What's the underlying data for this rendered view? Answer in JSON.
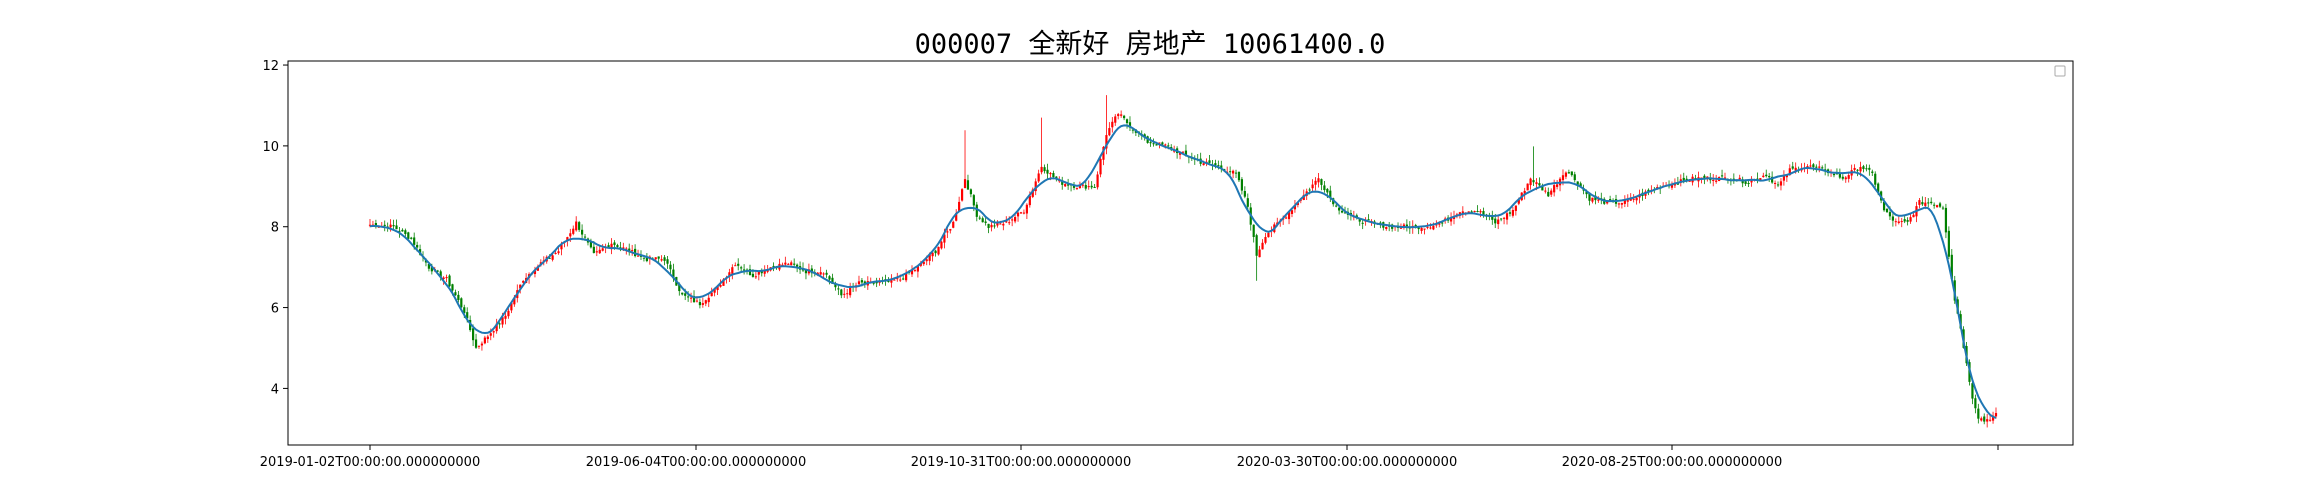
{
  "chart_data": {
    "type": "candlestick",
    "title": "000007 全新好 房地产 10061400.0",
    "xlabel": "",
    "ylabel": "",
    "ylim": [
      2.6,
      12.1
    ],
    "x_tick_labels": [
      "2019-01-02T00:00:00.000000000",
      "2019-06-04T00:00:00.000000000",
      "2019-10-31T00:00:00.000000000",
      "2020-03-30T00:00:00.000000000",
      "2020-08-25T00:00:00.000000000",
      ""
    ],
    "y_ticks": [
      4,
      6,
      8,
      10,
      12
    ],
    "grid": false,
    "legend": "top-right (empty)",
    "up_color": "#ff0000",
    "down_color": "#008000",
    "line_color": "#1f77b4",
    "price_keypoints": [
      [
        0,
        8.05
      ],
      [
        8,
        8.0
      ],
      [
        14,
        7.7
      ],
      [
        20,
        7.0
      ],
      [
        26,
        6.7
      ],
      [
        32,
        5.9
      ],
      [
        36,
        5.0
      ],
      [
        40,
        5.3
      ],
      [
        46,
        5.8
      ],
      [
        52,
        6.7
      ],
      [
        58,
        7.1
      ],
      [
        64,
        7.4
      ],
      [
        70,
        8.1
      ],
      [
        76,
        7.3
      ],
      [
        82,
        7.6
      ],
      [
        88,
        7.4
      ],
      [
        94,
        7.2
      ],
      [
        100,
        7.2
      ],
      [
        106,
        6.3
      ],
      [
        112,
        6.1
      ],
      [
        118,
        6.5
      ],
      [
        124,
        7.1
      ],
      [
        130,
        6.8
      ],
      [
        136,
        7.0
      ],
      [
        142,
        7.1
      ],
      [
        148,
        6.9
      ],
      [
        154,
        6.9
      ],
      [
        160,
        6.3
      ],
      [
        166,
        6.6
      ],
      [
        172,
        6.6
      ],
      [
        180,
        6.7
      ],
      [
        186,
        7.0
      ],
      [
        192,
        7.4
      ],
      [
        198,
        8.1
      ],
      [
        202,
        9.2
      ],
      [
        206,
        8.3
      ],
      [
        210,
        8.0
      ],
      [
        216,
        8.1
      ],
      [
        222,
        8.4
      ],
      [
        228,
        9.5
      ],
      [
        234,
        9.1
      ],
      [
        240,
        9.0
      ],
      [
        246,
        9.0
      ],
      [
        250,
        10.3
      ],
      [
        254,
        10.8
      ],
      [
        258,
        10.5
      ],
      [
        264,
        10.1
      ],
      [
        270,
        10.0
      ],
      [
        276,
        9.8
      ],
      [
        282,
        9.6
      ],
      [
        288,
        9.5
      ],
      [
        294,
        9.3
      ],
      [
        298,
        8.5
      ],
      [
        301,
        7.3
      ],
      [
        304,
        7.8
      ],
      [
        310,
        8.2
      ],
      [
        316,
        8.7
      ],
      [
        322,
        9.2
      ],
      [
        328,
        8.5
      ],
      [
        334,
        8.2
      ],
      [
        340,
        8.1
      ],
      [
        346,
        8.0
      ],
      [
        352,
        8.0
      ],
      [
        358,
        8.0
      ],
      [
        364,
        8.1
      ],
      [
        370,
        8.4
      ],
      [
        376,
        8.4
      ],
      [
        382,
        8.1
      ],
      [
        388,
        8.4
      ],
      [
        394,
        9.2
      ],
      [
        400,
        8.8
      ],
      [
        406,
        9.4
      ],
      [
        410,
        9.1
      ],
      [
        414,
        8.7
      ],
      [
        420,
        8.6
      ],
      [
        426,
        8.6
      ],
      [
        432,
        8.8
      ],
      [
        438,
        9.0
      ],
      [
        444,
        9.1
      ],
      [
        450,
        9.2
      ],
      [
        456,
        9.2
      ],
      [
        462,
        9.2
      ],
      [
        468,
        9.1
      ],
      [
        474,
        9.3
      ],
      [
        478,
        9.0
      ],
      [
        482,
        9.4
      ],
      [
        488,
        9.5
      ],
      [
        494,
        9.4
      ],
      [
        500,
        9.2
      ],
      [
        506,
        9.5
      ],
      [
        510,
        9.3
      ],
      [
        514,
        8.4
      ],
      [
        518,
        8.1
      ],
      [
        522,
        8.1
      ],
      [
        526,
        8.6
      ],
      [
        530,
        8.6
      ],
      [
        534,
        8.5
      ],
      [
        536,
        7.3
      ],
      [
        538,
        6.2
      ],
      [
        540,
        5.5
      ],
      [
        542,
        4.6
      ],
      [
        544,
        3.8
      ],
      [
        546,
        3.3
      ],
      [
        548,
        3.2
      ],
      [
        552,
        3.35
      ]
    ]
  }
}
